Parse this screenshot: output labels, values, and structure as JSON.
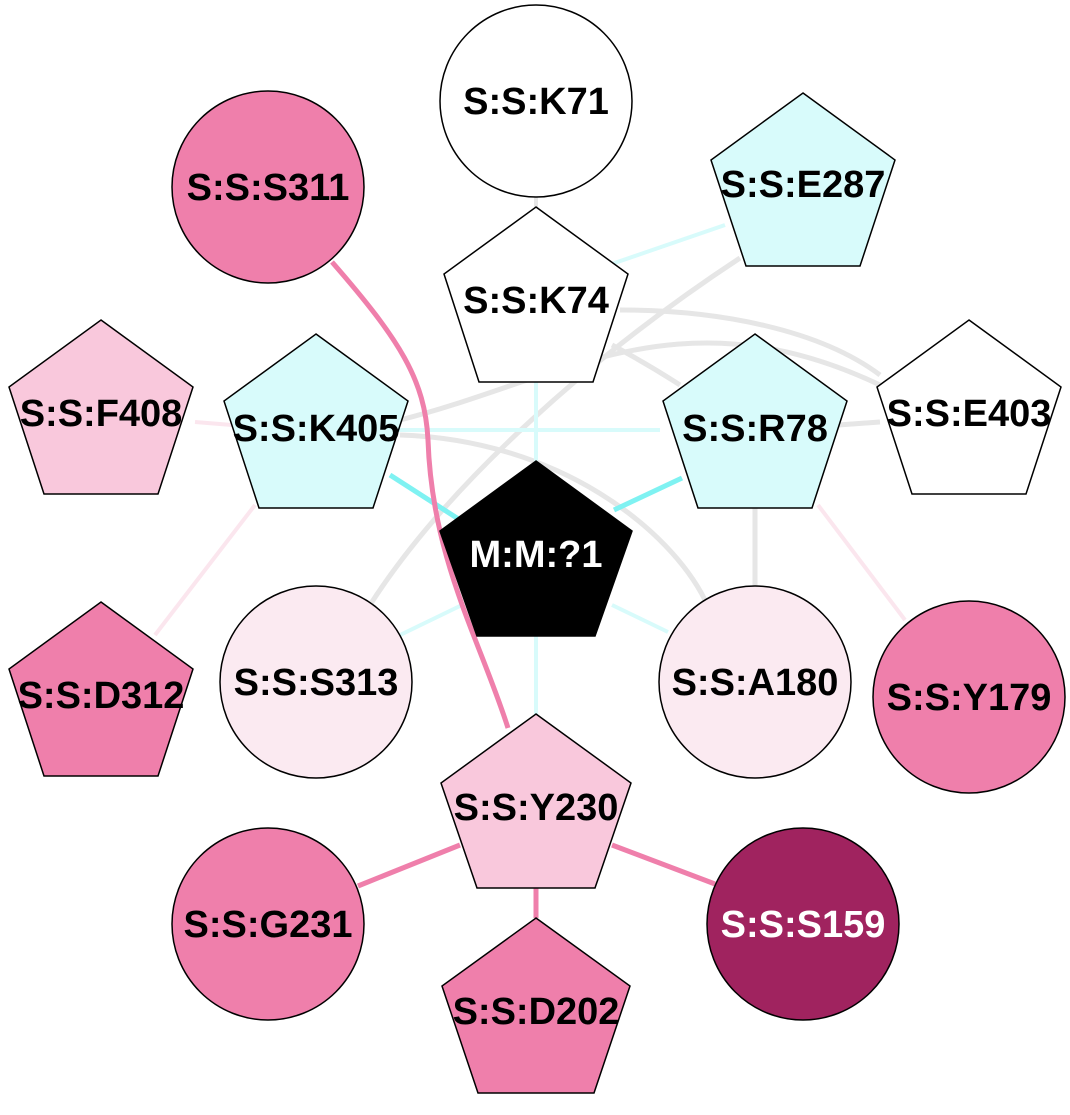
{
  "colors": {
    "edge_light_gray": "#e6e6e6",
    "edge_light_cyan": "#d8fbfb",
    "edge_cyan": "#7ff2f2",
    "edge_pink": "#ef7fab",
    "edge_pale_pink": "#fbe6ee",
    "node_white": "#ffffff",
    "node_cyan": "#d8fbfb",
    "node_pale_pink": "#fbeaf1",
    "node_light_pink": "#f9c8dc",
    "node_pink": "#ef7fab",
    "node_dark": "#a0235f",
    "node_black": "#000000"
  },
  "nodes": {
    "k71": "S:S:K71",
    "e287": "S:S:E287",
    "s311": "S:S:S311",
    "k74": "S:S:K74",
    "f408": "S:S:F408",
    "k405": "S:S:K405",
    "r78": "S:S:R78",
    "e403": "S:S:E403",
    "center": "M:M:?1",
    "d312": "S:S:D312",
    "s313": "S:S:S313",
    "a180": "S:S:A180",
    "y179": "S:S:Y179",
    "y230": "S:S:Y230",
    "g231": "S:S:G231",
    "s159": "S:S:S159",
    "d202": "S:S:D202"
  }
}
